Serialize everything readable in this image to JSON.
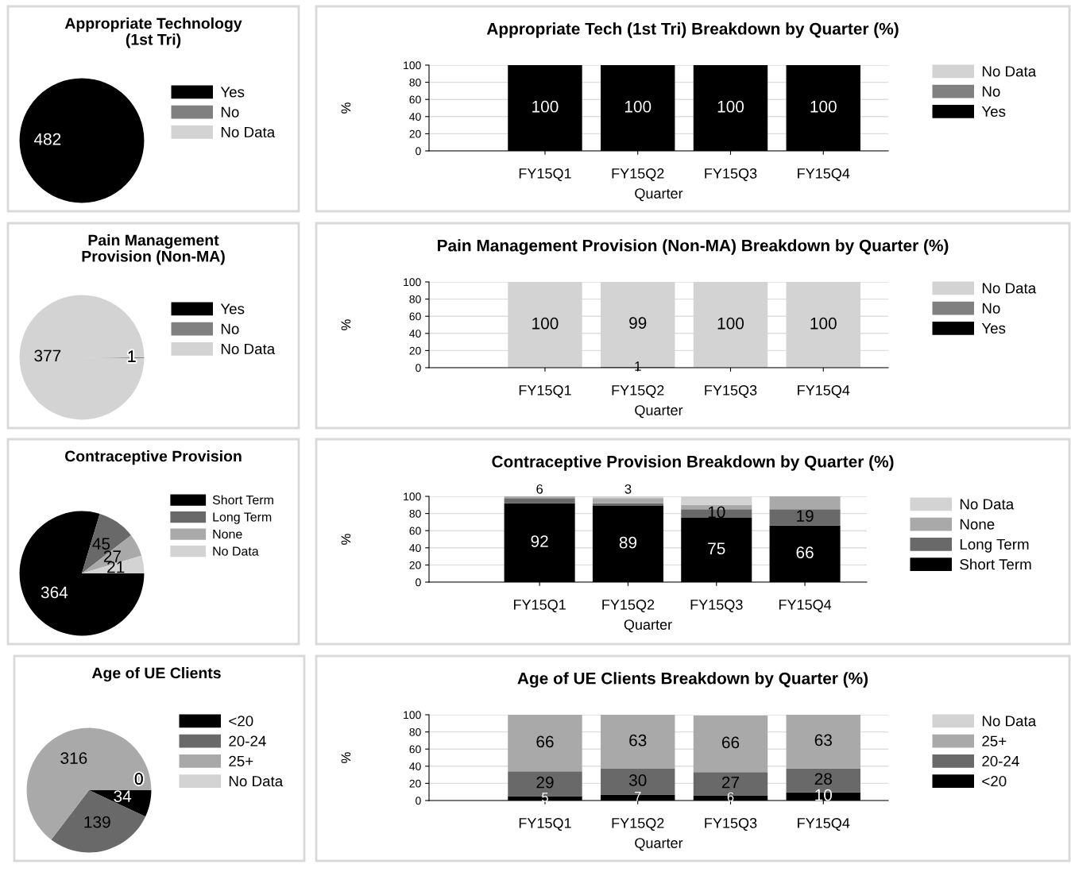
{
  "chart_data": [
    {
      "type": "pie",
      "title": "Appropriate Technology\n(1st Tri)",
      "categories": [
        "Yes",
        "No",
        "No Data"
      ],
      "values": [
        482,
        0,
        0
      ],
      "colors": [
        "#000000",
        "#808080",
        "#d3d3d3"
      ],
      "value_labels": [
        "482",
        null,
        null
      ],
      "legend": "right"
    },
    {
      "type": "bar",
      "title": "Appropriate Tech (1st Tri) Breakdown by Quarter (%)",
      "xlabel": "Quarter",
      "ylabel": "%",
      "categories": [
        "FY15Q1",
        "FY15Q2",
        "FY15Q3",
        "FY15Q4"
      ],
      "stacked": true,
      "ylim": [
        0,
        100
      ],
      "yticks": [
        0,
        20,
        40,
        60,
        80,
        100
      ],
      "grid": "y",
      "legend": "right",
      "series": [
        {
          "name": "Yes",
          "color": "#000000",
          "values": [
            100,
            100,
            100,
            100
          ],
          "value_labels": [
            "100",
            "100",
            "100",
            "100"
          ]
        },
        {
          "name": "No",
          "color": "#808080",
          "values": [
            0,
            0,
            0,
            0
          ],
          "value_labels": [
            null,
            null,
            null,
            null
          ]
        },
        {
          "name": "No Data",
          "color": "#d3d3d3",
          "values": [
            0,
            0,
            0,
            0
          ],
          "value_labels": [
            null,
            null,
            null,
            null
          ]
        }
      ]
    },
    {
      "type": "pie",
      "title": "Pain Management\nProvision (Non-MA)",
      "categories": [
        "Yes",
        "No",
        "No Data"
      ],
      "values": [
        0,
        1,
        377
      ],
      "colors": [
        "#000000",
        "#808080",
        "#d3d3d3"
      ],
      "value_labels": [
        null,
        "1",
        "377"
      ],
      "legend": "right"
    },
    {
      "type": "bar",
      "title": "Pain Management Provision (Non-MA) Breakdown by Quarter (%)",
      "xlabel": "Quarter",
      "ylabel": "%",
      "categories": [
        "FY15Q1",
        "FY15Q2",
        "FY15Q3",
        "FY15Q4"
      ],
      "stacked": true,
      "ylim": [
        0,
        100
      ],
      "yticks": [
        0,
        20,
        40,
        60,
        80,
        100
      ],
      "grid": "y",
      "legend": "right",
      "series": [
        {
          "name": "Yes",
          "color": "#000000",
          "values": [
            0,
            0,
            0,
            0
          ],
          "value_labels": [
            null,
            null,
            null,
            null
          ]
        },
        {
          "name": "No",
          "color": "#808080",
          "values": [
            0,
            1,
            0,
            0
          ],
          "value_labels": [
            null,
            "1",
            null,
            null
          ]
        },
        {
          "name": "No Data",
          "color": "#d3d3d3",
          "values": [
            100,
            99,
            100,
            100
          ],
          "value_labels": [
            "100",
            "99",
            "100",
            "100"
          ]
        }
      ]
    },
    {
      "type": "pie",
      "title": "Contraceptive Provision",
      "categories": [
        "Short Term",
        "Long Term",
        "None",
        "No Data"
      ],
      "values": [
        364,
        45,
        27,
        21
      ],
      "colors": [
        "#000000",
        "#696969",
        "#a9a9a9",
        "#d3d3d3"
      ],
      "value_labels": [
        "364",
        "45",
        "27",
        "21"
      ],
      "legend": "right"
    },
    {
      "type": "bar",
      "title": "Contraceptive Provision Breakdown by Quarter (%)",
      "xlabel": "Quarter",
      "ylabel": "%",
      "categories": [
        "FY15Q1",
        "FY15Q2",
        "FY15Q3",
        "FY15Q4"
      ],
      "stacked": true,
      "ylim": [
        0,
        100
      ],
      "yticks": [
        0,
        20,
        40,
        60,
        80,
        100
      ],
      "grid": "y",
      "legend": "right",
      "series": [
        {
          "name": "Short Term",
          "color": "#000000",
          "values": [
            92,
            89,
            75,
            66
          ],
          "value_labels": [
            "92",
            "89",
            "75",
            "66"
          ]
        },
        {
          "name": "Long Term",
          "color": "#696969",
          "values": [
            6,
            3,
            10,
            19
          ],
          "value_labels": [
            "6",
            "3",
            "10",
            "19"
          ]
        },
        {
          "name": "None",
          "color": "#a9a9a9",
          "values": [
            2,
            6,
            5,
            15
          ],
          "value_labels": [
            null,
            null,
            null,
            null
          ]
        },
        {
          "name": "No Data",
          "color": "#d3d3d3",
          "values": [
            0,
            2,
            10,
            0
          ],
          "value_labels": [
            null,
            null,
            null,
            null
          ]
        }
      ]
    },
    {
      "type": "pie",
      "title": "Age of UE Clients",
      "categories": [
        "<20",
        "20-24",
        "25+",
        "No Data"
      ],
      "values": [
        34,
        139,
        316,
        0
      ],
      "colors": [
        "#000000",
        "#696969",
        "#a9a9a9",
        "#d3d3d3"
      ],
      "value_labels": [
        "34",
        "139",
        "316",
        "0"
      ],
      "legend": "right"
    },
    {
      "type": "bar",
      "title": "Age of UE Clients Breakdown by Quarter (%)",
      "xlabel": "Quarter",
      "ylabel": "%",
      "categories": [
        "FY15Q1",
        "FY15Q2",
        "FY15Q3",
        "FY15Q4"
      ],
      "stacked": true,
      "ylim": [
        0,
        100
      ],
      "yticks": [
        0,
        20,
        40,
        60,
        80,
        100
      ],
      "grid": "y",
      "legend": "right",
      "series": [
        {
          "name": "<20",
          "color": "#000000",
          "values": [
            5,
            7,
            6,
            9.6
          ],
          "value_labels": [
            "5",
            "7",
            "6",
            "10"
          ]
        },
        {
          "name": "20-24",
          "color": "#696969",
          "values": [
            29,
            30,
            27,
            27.9
          ],
          "value_labels": [
            "29",
            "30",
            "27",
            "28"
          ]
        },
        {
          "name": "25+",
          "color": "#a9a9a9",
          "values": [
            66,
            63,
            66,
            62.5
          ],
          "value_labels": [
            "66",
            "63",
            "66",
            "63"
          ]
        },
        {
          "name": "No Data",
          "color": "#d3d3d3",
          "values": [
            0,
            0,
            0,
            0
          ],
          "value_labels": [
            null,
            null,
            null,
            null
          ]
        }
      ]
    }
  ]
}
